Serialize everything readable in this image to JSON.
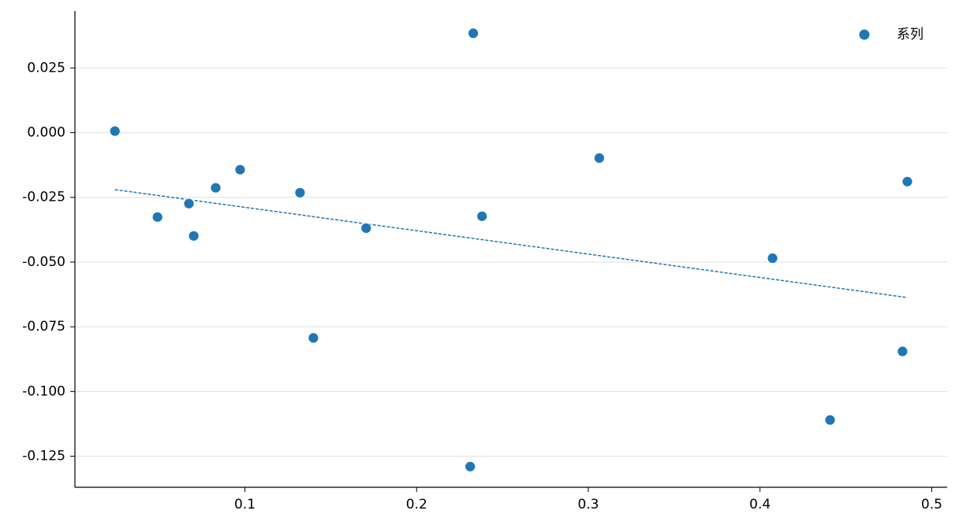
{
  "chart_data": {
    "type": "scatter",
    "xlim": [
      0.001,
      0.509
    ],
    "ylim": [
      -0.137,
      0.047
    ],
    "xticks": [
      0.1,
      0.2,
      0.3,
      0.4,
      0.5
    ],
    "yticks": [
      0.025,
      {
        "value": 0,
        "label": "0.000"
      },
      -0.025,
      {
        "value": -0.05,
        "label": "-0.050"
      },
      -0.075,
      {
        "value": -0.1,
        "label": "-0.100"
      },
      -0.125
    ],
    "grid": "y",
    "legend": "upper right",
    "series": [
      {
        "name": "系列",
        "color": "#1f77b4",
        "x": [
          0.0243,
          0.0491,
          0.0674,
          0.0702,
          0.083,
          0.0972,
          0.1321,
          0.1399,
          0.1706,
          0.2312,
          0.233,
          0.2381,
          0.3064,
          0.4073,
          0.4408,
          0.483,
          0.4858
        ],
        "values": [
          0.0006,
          -0.0326,
          -0.0274,
          -0.0399,
          -0.0213,
          -0.0143,
          -0.0232,
          -0.0793,
          -0.0369,
          -0.129,
          0.0384,
          -0.0323,
          -0.0098,
          -0.0485,
          -0.111,
          -0.0845,
          -0.0189
        ]
      }
    ],
    "trend_line": {
      "color": "#1f77b4",
      "x": [
        0.0243,
        0.4858
      ],
      "values": [
        -0.022,
        -0.0637
      ]
    }
  }
}
